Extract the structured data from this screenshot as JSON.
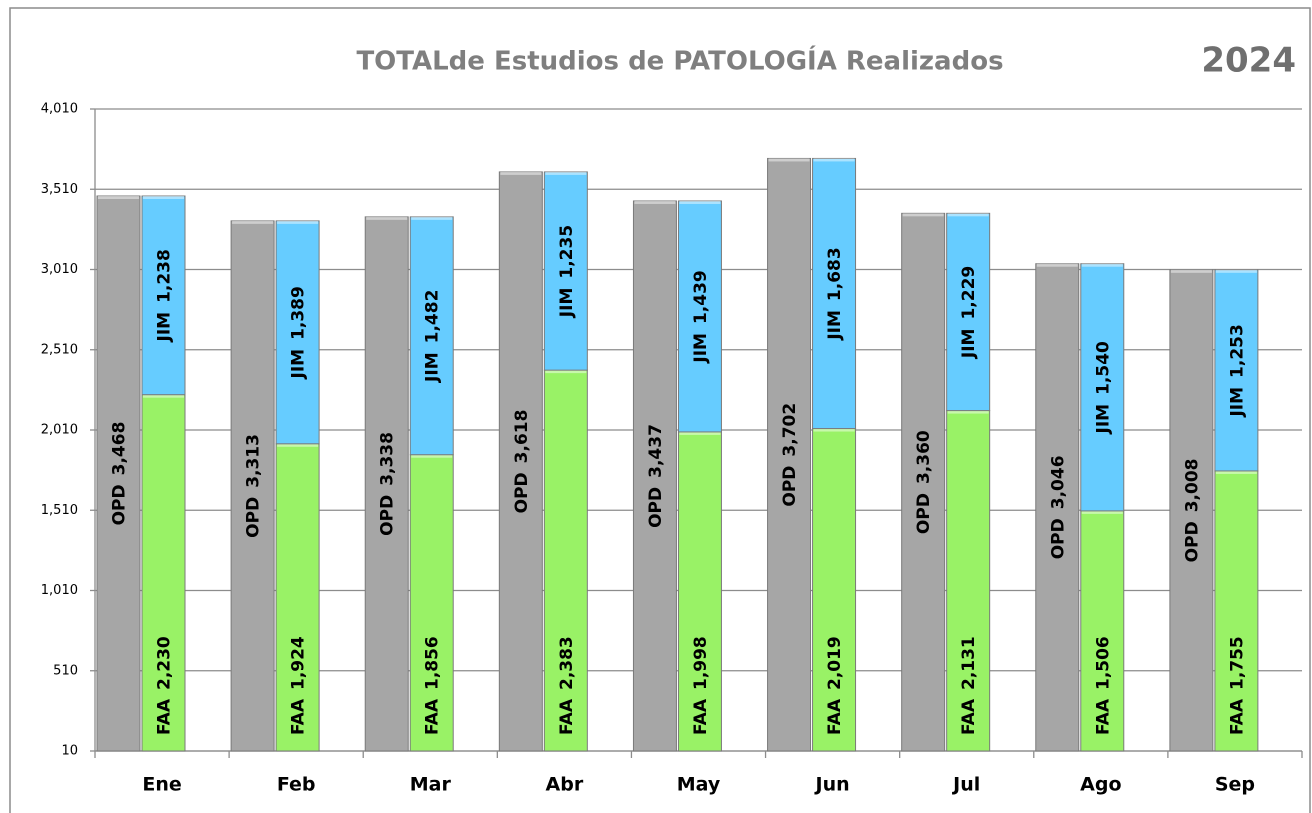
{
  "chart_data": {
    "type": "stacked_bar",
    "title": "TOTALde Estudios de PATOLOGÍA Realizados",
    "annotation": "2024",
    "categories": [
      "Ene",
      "Feb",
      "Mar",
      "Abr",
      "May",
      "Jun",
      "Jul",
      "Ago",
      "Sep"
    ],
    "series": [
      {
        "name": "OPD",
        "color": "#a6a6a6",
        "stack": "a",
        "values": [
          3468,
          3313,
          3338,
          3618,
          3437,
          3702,
          3360,
          3046,
          3008
        ],
        "value_labels": [
          "3,468",
          "3,313",
          "3,338",
          "3,618",
          "3,437",
          "3,702",
          "3,360",
          "3,046",
          "3,008"
        ]
      },
      {
        "name": "FAA",
        "color": "#99f266",
        "stack": "b",
        "values": [
          2230,
          1924,
          1856,
          2383,
          1998,
          2019,
          2131,
          1506,
          1755
        ],
        "value_labels": [
          "2,230",
          "1,924",
          "1,856",
          "2,383",
          "1,998",
          "2,019",
          "2,131",
          "1,506",
          "1,755"
        ]
      },
      {
        "name": "JIM",
        "color": "#66ccff",
        "stack": "b",
        "values": [
          1238,
          1389,
          1482,
          1235,
          1439,
          1683,
          1229,
          1540,
          1253
        ],
        "value_labels": [
          "1,238",
          "1,389",
          "1,482",
          "1,235",
          "1,439",
          "1,683",
          "1,229",
          "1,540",
          "1,253"
        ]
      }
    ],
    "ylim": [
      10,
      4010
    ],
    "yticks": [
      10,
      510,
      {
        "value": 1010,
        "label": "1,010"
      },
      {
        "value": 1510,
        "label": "1,510"
      },
      {
        "value": 2010,
        "label": "2,010"
      },
      {
        "value": 2510,
        "label": "2,510"
      },
      {
        "value": 3010,
        "label": "3,010"
      },
      {
        "value": 3510,
        "label": "3,510"
      },
      {
        "value": 4010,
        "label": "4,010"
      }
    ],
    "grid": true
  }
}
